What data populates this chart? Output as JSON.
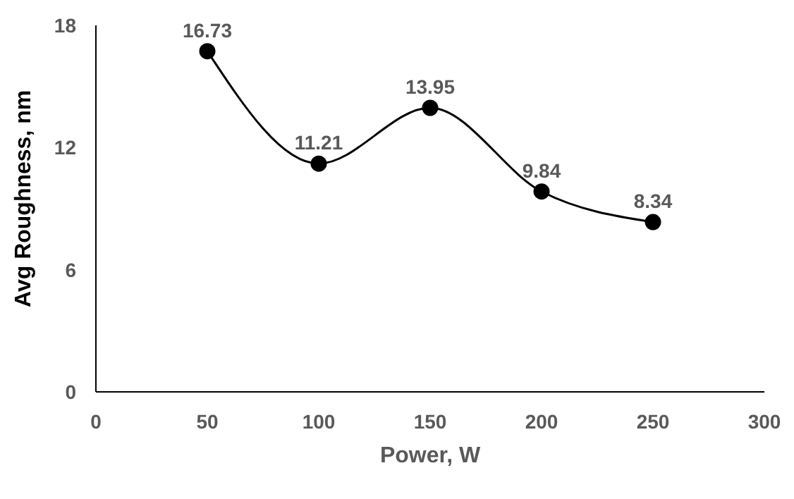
{
  "chart_data": {
    "type": "line",
    "xlabel": "Power, W",
    "ylabel": "Avg Roughness, nm",
    "x": [
      50,
      100,
      150,
      200,
      250
    ],
    "series": [
      {
        "color": "#000000",
        "values": [
          16.73,
          11.21,
          13.95,
          9.84,
          8.34
        ]
      }
    ],
    "xlim": [
      0,
      300
    ],
    "xticks": [
      0,
      50,
      100,
      150,
      200,
      250,
      300
    ],
    "ylim": [
      0,
      18
    ],
    "yticks": [
      0,
      6,
      12,
      18
    ],
    "grid": false,
    "legend": false,
    "marker": "circle",
    "line_style": "solid",
    "data_labels": true
  }
}
